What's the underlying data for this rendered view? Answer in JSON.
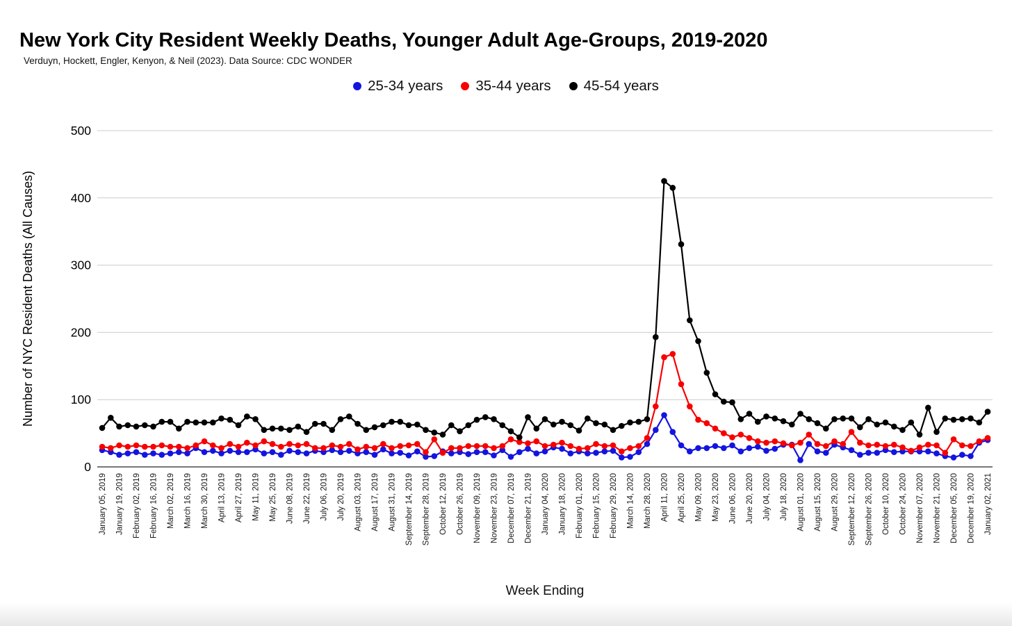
{
  "header": {
    "title": "New York City Resident Weekly Deaths, Younger Adult Age-Groups, 2019-2020",
    "subtitle": "Verduyn, Hockett, Engler, Kenyon, & Neil (2023). Data Source: CDC WONDER"
  },
  "chart_data": {
    "type": "line",
    "title": "New York City Resident Weekly Deaths, Younger Adult Age-Groups, 2019-2020",
    "xlabel": "Week Ending",
    "ylabel": "Number of NYC Resident Deaths (All Causes)",
    "ylim": [
      0,
      500
    ],
    "y_ticks": [
      0,
      100,
      200,
      300,
      400,
      500
    ],
    "grid": "horizontal-gridlines",
    "legend_position": "top-center",
    "x_tick_every": 2,
    "marker": "filled-circle",
    "x": [
      "January 05, 2019",
      "January 12, 2019",
      "January 19, 2019",
      "January 26, 2019",
      "February 02, 2019",
      "February 09, 2019",
      "February 16, 2019",
      "February 23, 2019",
      "March 02, 2019",
      "March 09, 2019",
      "March 16, 2019",
      "March 23, 2019",
      "March 30, 2019",
      "April 06, 2019",
      "April 13, 2019",
      "April 20, 2019",
      "April 27, 2019",
      "May 04, 2019",
      "May 11, 2019",
      "May 18, 2019",
      "May 25, 2019",
      "June 01, 2019",
      "June 08, 2019",
      "June 15, 2019",
      "June 22, 2019",
      "June 29, 2019",
      "July 06, 2019",
      "July 13, 2019",
      "July 20, 2019",
      "July 27, 2019",
      "August 03, 2019",
      "August 10, 2019",
      "August 17, 2019",
      "August 24, 2019",
      "August 31, 2019",
      "September 07, 2019",
      "September 14, 2019",
      "September 21, 2019",
      "September 28, 2019",
      "October 05, 2019",
      "October 12, 2019",
      "October 19, 2019",
      "October 26, 2019",
      "November 02, 2019",
      "November 09, 2019",
      "November 16, 2019",
      "November 23, 2019",
      "November 30, 2019",
      "December 07, 2019",
      "December 14, 2019",
      "December 21, 2019",
      "December 28, 2019",
      "January 04, 2020",
      "January 11, 2020",
      "January 18, 2020",
      "January 25, 2020",
      "February 01, 2020",
      "February 08, 2020",
      "February 15, 2020",
      "February 22, 2020",
      "February 29, 2020",
      "March 07, 2020",
      "March 14, 2020",
      "March 21, 2020",
      "March 28, 2020",
      "April 04, 2020",
      "April 11, 2020",
      "April 18, 2020",
      "April 25, 2020",
      "May 02, 2020",
      "May 09, 2020",
      "May 16, 2020",
      "May 23, 2020",
      "May 30, 2020",
      "June 06, 2020",
      "June 13, 2020",
      "June 20, 2020",
      "June 27, 2020",
      "July 04, 2020",
      "July 11, 2020",
      "July 18, 2020",
      "July 25, 2020",
      "August 01, 2020",
      "August 08, 2020",
      "August 15, 2020",
      "August 22, 2020",
      "August 29, 2020",
      "September 05, 2020",
      "September 12, 2020",
      "September 19, 2020",
      "September 26, 2020",
      "October 03, 2020",
      "October 10, 2020",
      "October 17, 2020",
      "October 24, 2020",
      "October 31, 2020",
      "November 07, 2020",
      "November 14, 2020",
      "November 21, 2020",
      "November 28, 2020",
      "December 05, 2020",
      "December 12, 2020",
      "December 19, 2020",
      "December 26, 2020",
      "January 02, 2021"
    ],
    "series": [
      {
        "name": "25-34 years",
        "color": "#1414e0",
        "values": [
          25,
          22,
          18,
          20,
          22,
          18,
          20,
          18,
          20,
          22,
          20,
          28,
          22,
          24,
          20,
          24,
          22,
          22,
          26,
          20,
          22,
          18,
          24,
          22,
          20,
          24,
          22,
          25,
          22,
          24,
          20,
          22,
          18,
          26,
          20,
          21,
          17,
          23,
          15,
          16,
          23,
          20,
          22,
          19,
          22,
          22,
          17,
          25,
          15,
          22,
          27,
          20,
          23,
          29,
          27,
          20,
          23,
          20,
          21,
          23,
          24,
          14,
          15,
          22,
          34,
          55,
          77,
          52,
          32,
          23,
          28,
          28,
          31,
          28,
          32,
          23,
          28,
          30,
          24,
          27,
          33,
          33,
          10,
          34,
          23,
          21,
          33,
          29,
          25,
          18,
          21,
          21,
          25,
          22,
          23,
          23,
          23,
          23,
          20,
          16,
          14,
          18,
          16,
          36,
          40
        ]
      },
      {
        "name": "35-44 years",
        "color": "#f80000",
        "values": [
          30,
          28,
          32,
          30,
          32,
          30,
          30,
          32,
          30,
          30,
          28,
          32,
          38,
          32,
          28,
          34,
          30,
          36,
          32,
          38,
          34,
          30,
          34,
          32,
          34,
          28,
          28,
          32,
          30,
          34,
          26,
          30,
          28,
          34,
          28,
          31,
          32,
          34,
          22,
          41,
          21,
          28,
          28,
          31,
          31,
          31,
          28,
          31,
          41,
          37,
          35,
          38,
          31,
          33,
          36,
          31,
          27,
          28,
          34,
          31,
          32,
          23,
          28,
          31,
          43,
          90,
          163,
          168,
          123,
          90,
          70,
          65,
          57,
          50,
          44,
          48,
          43,
          38,
          36,
          38,
          35,
          32,
          36,
          48,
          34,
          31,
          38,
          34,
          52,
          36,
          32,
          33,
          31,
          33,
          29,
          24,
          29,
          33,
          32,
          21,
          41,
          32,
          31,
          38,
          43
        ]
      },
      {
        "name": "45-54 years",
        "color": "#000000",
        "values": [
          58,
          73,
          60,
          62,
          60,
          62,
          60,
          67,
          67,
          57,
          67,
          66,
          66,
          66,
          72,
          70,
          62,
          75,
          71,
          55,
          57,
          57,
          55,
          60,
          52,
          64,
          64,
          55,
          71,
          75,
          64,
          55,
          59,
          62,
          67,
          67,
          62,
          63,
          55,
          51,
          48,
          62,
          53,
          62,
          70,
          74,
          71,
          62,
          53,
          44,
          74,
          57,
          71,
          63,
          67,
          62,
          54,
          72,
          65,
          63,
          55,
          61,
          66,
          67,
          71,
          193,
          425,
          415,
          331,
          218,
          187,
          140,
          108,
          97,
          96,
          71,
          79,
          67,
          75,
          72,
          68,
          63,
          79,
          71,
          65,
          57,
          71,
          72,
          72,
          59,
          71,
          63,
          66,
          60,
          55,
          66,
          48,
          88,
          52,
          72,
          70,
          71,
          72,
          66,
          82
        ]
      }
    ],
    "style": {
      "gridline_color": "#cccccc",
      "zero_axis_color": "#777777",
      "background": "#ffffff"
    }
  }
}
